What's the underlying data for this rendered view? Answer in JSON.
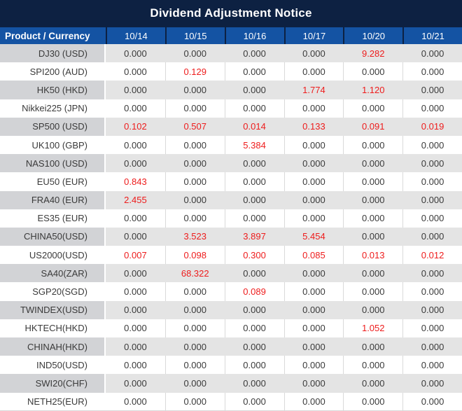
{
  "title": "Dividend Adjustment Notice",
  "chart_data": {
    "type": "table",
    "title": "Dividend Adjustment Notice",
    "row_header_label": "Product / Currency",
    "columns": [
      "10/14",
      "10/15",
      "10/16",
      "10/17",
      "10/20",
      "10/21"
    ],
    "note": "red_indexes mark non-zero dividend adjustment values rendered in red",
    "rows": [
      {
        "product": "DJ30 (USD)",
        "values": [
          "0.000",
          "0.000",
          "0.000",
          "0.000",
          "9.282",
          "0.000"
        ],
        "red_indexes": [
          4
        ]
      },
      {
        "product": "SPI200 (AUD)",
        "values": [
          "0.000",
          "0.129",
          "0.000",
          "0.000",
          "0.000",
          "0.000"
        ],
        "red_indexes": [
          1
        ]
      },
      {
        "product": "HK50 (HKD)",
        "values": [
          "0.000",
          "0.000",
          "0.000",
          "1.774",
          "1.120",
          "0.000"
        ],
        "red_indexes": [
          3,
          4
        ]
      },
      {
        "product": "Nikkei225 (JPN)",
        "values": [
          "0.000",
          "0.000",
          "0.000",
          "0.000",
          "0.000",
          "0.000"
        ],
        "red_indexes": []
      },
      {
        "product": "SP500 (USD)",
        "values": [
          "0.102",
          "0.507",
          "0.014",
          "0.133",
          "0.091",
          "0.019"
        ],
        "red_indexes": [
          0,
          1,
          2,
          3,
          4,
          5
        ]
      },
      {
        "product": "UK100 (GBP)",
        "values": [
          "0.000",
          "0.000",
          "5.384",
          "0.000",
          "0.000",
          "0.000"
        ],
        "red_indexes": [
          2
        ]
      },
      {
        "product": "NAS100 (USD)",
        "values": [
          "0.000",
          "0.000",
          "0.000",
          "0.000",
          "0.000",
          "0.000"
        ],
        "red_indexes": []
      },
      {
        "product": "EU50 (EUR)",
        "values": [
          "0.843",
          "0.000",
          "0.000",
          "0.000",
          "0.000",
          "0.000"
        ],
        "red_indexes": [
          0
        ]
      },
      {
        "product": "FRA40 (EUR)",
        "values": [
          "2.455",
          "0.000",
          "0.000",
          "0.000",
          "0.000",
          "0.000"
        ],
        "red_indexes": [
          0
        ]
      },
      {
        "product": "ES35 (EUR)",
        "values": [
          "0.000",
          "0.000",
          "0.000",
          "0.000",
          "0.000",
          "0.000"
        ],
        "red_indexes": []
      },
      {
        "product": "CHINA50(USD)",
        "values": [
          "0.000",
          "3.523",
          "3.897",
          "5.454",
          "0.000",
          "0.000"
        ],
        "red_indexes": [
          1,
          2,
          3
        ]
      },
      {
        "product": "US2000(USD)",
        "values": [
          "0.007",
          "0.098",
          "0.300",
          "0.085",
          "0.013",
          "0.012"
        ],
        "red_indexes": [
          0,
          1,
          2,
          3,
          4,
          5
        ]
      },
      {
        "product": "SA40(ZAR)",
        "values": [
          "0.000",
          "68.322",
          "0.000",
          "0.000",
          "0.000",
          "0.000"
        ],
        "red_indexes": [
          1
        ]
      },
      {
        "product": "SGP20(SGD)",
        "values": [
          "0.000",
          "0.000",
          "0.089",
          "0.000",
          "0.000",
          "0.000"
        ],
        "red_indexes": [
          2
        ]
      },
      {
        "product": "TWINDEX(USD)",
        "values": [
          "0.000",
          "0.000",
          "0.000",
          "0.000",
          "0.000",
          "0.000"
        ],
        "red_indexes": []
      },
      {
        "product": "HKTECH(HKD)",
        "values": [
          "0.000",
          "0.000",
          "0.000",
          "0.000",
          "1.052",
          "0.000"
        ],
        "red_indexes": [
          4
        ]
      },
      {
        "product": "CHINAH(HKD)",
        "values": [
          "0.000",
          "0.000",
          "0.000",
          "0.000",
          "0.000",
          "0.000"
        ],
        "red_indexes": []
      },
      {
        "product": "IND50(USD)",
        "values": [
          "0.000",
          "0.000",
          "0.000",
          "0.000",
          "0.000",
          "0.000"
        ],
        "red_indexes": []
      },
      {
        "product": "SWI20(CHF)",
        "values": [
          "0.000",
          "0.000",
          "0.000",
          "0.000",
          "0.000",
          "0.000"
        ],
        "red_indexes": []
      },
      {
        "product": "NETH25(EUR)",
        "values": [
          "0.000",
          "0.000",
          "0.000",
          "0.000",
          "0.000",
          "0.000"
        ],
        "red_indexes": []
      }
    ]
  },
  "colors": {
    "title_bar": "#0d2142",
    "header_blue": "#1453a3",
    "stripe_label": "#d2d3d6",
    "stripe_cell": "#e4e4e4",
    "divider": "#d9d9d9",
    "text_dark": "#3a3a3a",
    "highlight_red": "#ee1c1c"
  }
}
